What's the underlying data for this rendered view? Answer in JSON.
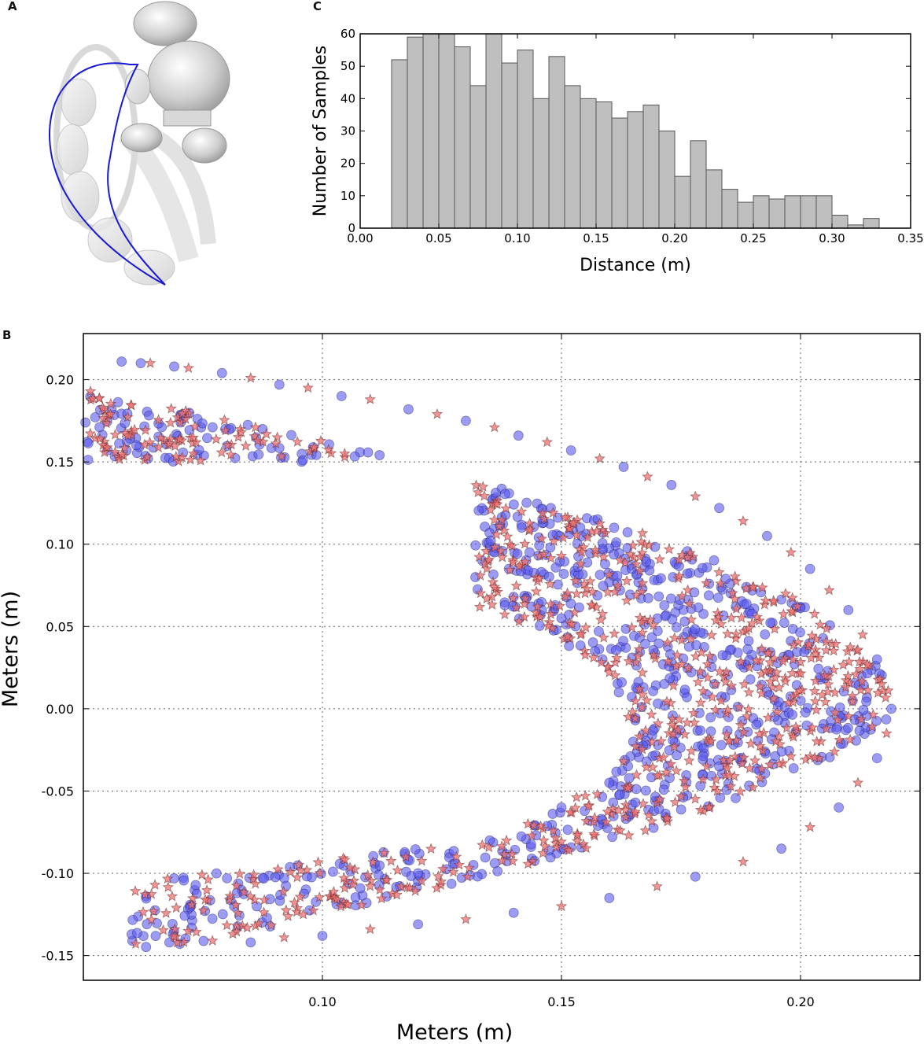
{
  "panels": {
    "a_letter": "A",
    "b_letter": "B",
    "c_letter": "C"
  },
  "colors": {
    "bar_fill": "#bfbfbf",
    "bar_stroke": "#555555",
    "circle_fill": "#5a5af0",
    "star_fill": "#f07070",
    "trajectory": "#1a1ad6",
    "model_gray": "#d8d8d8"
  },
  "illustration": {
    "description_icon": "bee-leg-model-with-trajectory-curve"
  },
  "chart_data": [
    {
      "id": "C",
      "type": "bar",
      "xlabel": "Distance (m)",
      "ylabel": "Number of Samples",
      "xlim": [
        0.0,
        0.35
      ],
      "ylim": [
        0,
        60
      ],
      "xticks": [
        "0.00",
        "0.05",
        "0.10",
        "0.15",
        "0.20",
        "0.25",
        "0.30",
        "0.35"
      ],
      "yticks": [
        "0",
        "10",
        "20",
        "30",
        "40",
        "50",
        "60"
      ],
      "bin_start": 0.02,
      "bin_width": 0.01,
      "values": [
        52,
        59,
        60,
        60,
        56,
        44,
        60,
        51,
        55,
        40,
        53,
        44,
        40,
        39,
        34,
        36,
        38,
        30,
        16,
        27,
        18,
        12,
        8,
        10,
        9,
        10,
        10,
        10,
        4,
        1,
        3
      ],
      "grid": false
    },
    {
      "id": "B",
      "type": "scatter",
      "xlabel": "Meters (m)",
      "ylabel": "Meters (m)",
      "xlim": [
        0.05,
        0.225
      ],
      "ylim": [
        -0.165,
        0.228
      ],
      "xticks": [
        "0.10",
        "0.15",
        "0.20"
      ],
      "yticks": [
        "-0.15",
        "-0.10",
        "-0.05",
        "0.00",
        "0.05",
        "0.10",
        "0.15",
        "0.20"
      ],
      "grid": true,
      "series": [
        {
          "marker": "circle",
          "shape": "crescent",
          "samples": [
            [
              0.058,
              0.211
            ],
            [
              0.062,
              0.21
            ],
            [
              0.069,
              0.208
            ],
            [
              0.079,
              0.204
            ],
            [
              0.091,
              0.197
            ],
            [
              0.104,
              0.19
            ],
            [
              0.118,
              0.182
            ],
            [
              0.13,
              0.175
            ],
            [
              0.141,
              0.166
            ],
            [
              0.152,
              0.157
            ],
            [
              0.163,
              0.147
            ],
            [
              0.173,
              0.136
            ],
            [
              0.183,
              0.122
            ],
            [
              0.193,
              0.105
            ],
            [
              0.202,
              0.085
            ],
            [
              0.21,
              0.06
            ],
            [
              0.216,
              0.03
            ],
            [
              0.219,
              0.0
            ],
            [
              0.216,
              -0.03
            ],
            [
              0.208,
              -0.06
            ],
            [
              0.196,
              -0.085
            ],
            [
              0.178,
              -0.102
            ],
            [
              0.16,
              -0.115
            ],
            [
              0.14,
              -0.124
            ],
            [
              0.12,
              -0.131
            ],
            [
              0.1,
              -0.138
            ],
            [
              0.085,
              -0.142
            ],
            [
              0.068,
              -0.142
            ],
            [
              0.136,
              0.095
            ],
            [
              0.132,
              0.08
            ],
            [
              0.14,
              0.068
            ],
            [
              0.15,
              0.055
            ],
            [
              0.157,
              0.035
            ],
            [
              0.162,
              0.01
            ],
            [
              0.165,
              -0.02
            ],
            [
              0.16,
              -0.045
            ],
            [
              0.15,
              -0.06
            ],
            [
              0.135,
              -0.08
            ],
            [
              0.12,
              -0.1
            ],
            [
              0.104,
              -0.118
            ]
          ]
        },
        {
          "marker": "star",
          "shape": "crescent",
          "samples": [
            [
              0.064,
              0.21
            ],
            [
              0.072,
              0.207
            ],
            [
              0.085,
              0.201
            ],
            [
              0.097,
              0.195
            ],
            [
              0.11,
              0.188
            ],
            [
              0.124,
              0.179
            ],
            [
              0.136,
              0.171
            ],
            [
              0.147,
              0.162
            ],
            [
              0.158,
              0.152
            ],
            [
              0.168,
              0.141
            ],
            [
              0.178,
              0.129
            ],
            [
              0.188,
              0.114
            ],
            [
              0.198,
              0.095
            ],
            [
              0.206,
              0.072
            ],
            [
              0.213,
              0.045
            ],
            [
              0.217,
              0.015
            ],
            [
              0.218,
              -0.015
            ],
            [
              0.212,
              -0.045
            ],
            [
              0.202,
              -0.072
            ],
            [
              0.188,
              -0.093
            ],
            [
              0.17,
              -0.108
            ],
            [
              0.15,
              -0.12
            ],
            [
              0.13,
              -0.128
            ],
            [
              0.11,
              -0.134
            ],
            [
              0.092,
              -0.139
            ],
            [
              0.077,
              -0.141
            ],
            [
              0.134,
              0.088
            ],
            [
              0.136,
              0.074
            ],
            [
              0.145,
              0.062
            ],
            [
              0.154,
              0.045
            ],
            [
              0.16,
              0.022
            ],
            [
              0.164,
              -0.005
            ],
            [
              0.163,
              -0.032
            ],
            [
              0.155,
              -0.053
            ],
            [
              0.143,
              -0.07
            ],
            [
              0.128,
              -0.09
            ],
            [
              0.112,
              -0.11
            ],
            [
              0.096,
              -0.125
            ]
          ]
        }
      ]
    }
  ]
}
